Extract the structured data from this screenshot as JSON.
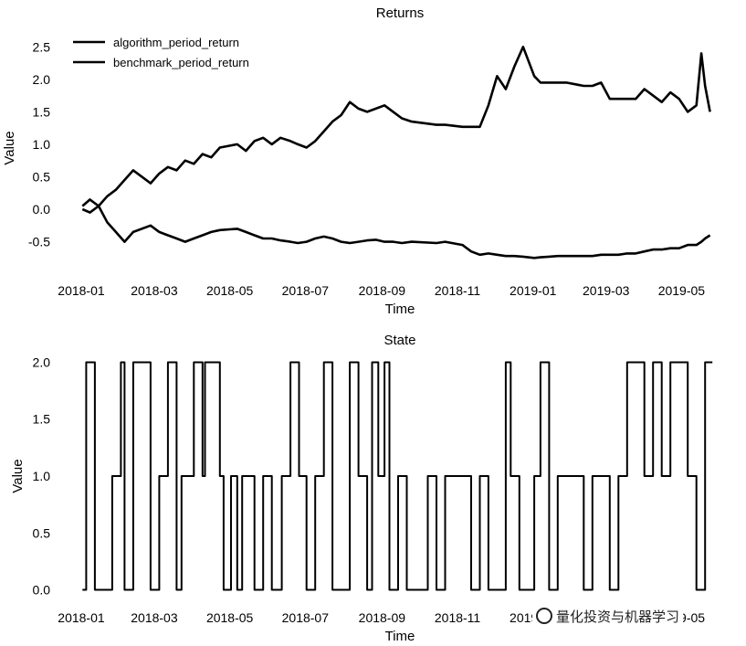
{
  "watermark": "量化投资与机器学习",
  "chart_data": [
    {
      "type": "line",
      "title": "Returns",
      "xlabel": "Time",
      "ylabel": "Value",
      "xlim": [
        "2017-12-18",
        "2019-05-28"
      ],
      "ylim": [
        -0.9,
        2.8
      ],
      "xticks": [
        "2018-01",
        "2018-03",
        "2018-05",
        "2018-07",
        "2018-09",
        "2018-11",
        "2019-01",
        "2019-03",
        "2019-05"
      ],
      "yticks": [
        -0.5,
        0.0,
        0.5,
        1.0,
        1.5,
        2.0,
        2.5
      ],
      "legend": "top-left",
      "grid": false,
      "series": [
        {
          "name": "algorithm_period_return",
          "color": "#000000",
          "x": [
            "2018-01-02",
            "2018-01-08",
            "2018-01-15",
            "2018-01-22",
            "2018-01-29",
            "2018-02-05",
            "2018-02-12",
            "2018-02-26",
            "2018-03-05",
            "2018-03-12",
            "2018-03-19",
            "2018-03-26",
            "2018-04-02",
            "2018-04-09",
            "2018-04-16",
            "2018-04-23",
            "2018-05-07",
            "2018-05-14",
            "2018-05-21",
            "2018-05-28",
            "2018-06-04",
            "2018-06-11",
            "2018-06-19",
            "2018-06-25",
            "2018-07-02",
            "2018-07-09",
            "2018-07-16",
            "2018-07-23",
            "2018-07-30",
            "2018-08-06",
            "2018-08-13",
            "2018-08-20",
            "2018-08-27",
            "2018-09-03",
            "2018-09-10",
            "2018-09-17",
            "2018-09-25",
            "2018-10-15",
            "2018-10-22",
            "2018-11-05",
            "2018-11-12",
            "2018-11-19",
            "2018-11-26",
            "2018-12-03",
            "2018-12-10",
            "2018-12-17",
            "2018-12-24",
            "2019-01-02",
            "2019-01-07",
            "2019-01-14",
            "2019-01-21",
            "2019-01-28",
            "2019-02-11",
            "2019-02-18",
            "2019-02-25",
            "2019-03-04",
            "2019-03-11",
            "2019-03-18",
            "2019-03-25",
            "2019-04-01",
            "2019-04-08",
            "2019-04-15",
            "2019-04-22",
            "2019-04-29",
            "2019-05-06",
            "2019-05-13",
            "2019-05-17",
            "2019-05-20",
            "2019-05-24"
          ],
          "values": [
            0.05,
            0.15,
            0.05,
            0.2,
            0.3,
            0.45,
            0.6,
            0.4,
            0.55,
            0.65,
            0.6,
            0.75,
            0.7,
            0.85,
            0.8,
            0.95,
            1.0,
            0.9,
            1.05,
            1.1,
            1.0,
            1.1,
            1.05,
            1.0,
            0.95,
            1.05,
            1.2,
            1.35,
            1.45,
            1.65,
            1.55,
            1.5,
            1.55,
            1.6,
            1.5,
            1.4,
            1.35,
            1.3,
            1.3,
            1.27,
            1.27,
            1.27,
            1.6,
            2.05,
            1.85,
            2.2,
            2.5,
            2.05,
            1.95,
            1.95,
            1.95,
            1.95,
            1.9,
            1.9,
            1.95,
            1.7,
            1.7,
            1.7,
            1.7,
            1.85,
            1.75,
            1.65,
            1.8,
            1.7,
            1.5,
            1.6,
            2.4,
            1.9,
            1.5
          ]
        },
        {
          "name": "benchmark_period_return",
          "color": "#000000",
          "x": [
            "2018-01-02",
            "2018-01-08",
            "2018-01-15",
            "2018-01-22",
            "2018-01-29",
            "2018-02-05",
            "2018-02-12",
            "2018-02-26",
            "2018-03-05",
            "2018-03-12",
            "2018-03-19",
            "2018-03-26",
            "2018-04-02",
            "2018-04-09",
            "2018-04-16",
            "2018-04-23",
            "2018-05-07",
            "2018-05-14",
            "2018-05-21",
            "2018-05-28",
            "2018-06-04",
            "2018-06-11",
            "2018-06-19",
            "2018-06-25",
            "2018-07-02",
            "2018-07-09",
            "2018-07-16",
            "2018-07-23",
            "2018-07-30",
            "2018-08-06",
            "2018-08-13",
            "2018-08-20",
            "2018-08-27",
            "2018-09-03",
            "2018-09-10",
            "2018-09-17",
            "2018-09-25",
            "2018-10-15",
            "2018-10-22",
            "2018-11-05",
            "2018-11-12",
            "2018-11-19",
            "2018-11-26",
            "2018-12-03",
            "2018-12-10",
            "2018-12-17",
            "2018-12-24",
            "2019-01-02",
            "2019-01-07",
            "2019-01-14",
            "2019-01-21",
            "2019-01-28",
            "2019-02-11",
            "2019-02-18",
            "2019-02-25",
            "2019-03-04",
            "2019-03-11",
            "2019-03-18",
            "2019-03-25",
            "2019-04-01",
            "2019-04-08",
            "2019-04-15",
            "2019-04-22",
            "2019-04-29",
            "2019-05-06",
            "2019-05-13",
            "2019-05-17",
            "2019-05-20",
            "2019-05-24"
          ],
          "values": [
            0.0,
            -0.05,
            0.05,
            -0.2,
            -0.35,
            -0.5,
            -0.35,
            -0.25,
            -0.35,
            -0.4,
            -0.45,
            -0.5,
            -0.45,
            -0.4,
            -0.35,
            -0.32,
            -0.3,
            -0.35,
            -0.4,
            -0.45,
            -0.45,
            -0.48,
            -0.5,
            -0.52,
            -0.5,
            -0.45,
            -0.42,
            -0.45,
            -0.5,
            -0.52,
            -0.5,
            -0.48,
            -0.47,
            -0.5,
            -0.5,
            -0.52,
            -0.5,
            -0.52,
            -0.5,
            -0.55,
            -0.65,
            -0.7,
            -0.68,
            -0.7,
            -0.72,
            -0.72,
            -0.73,
            -0.75,
            -0.74,
            -0.73,
            -0.72,
            -0.72,
            -0.72,
            -0.72,
            -0.7,
            -0.7,
            -0.7,
            -0.68,
            -0.68,
            -0.65,
            -0.62,
            -0.62,
            -0.6,
            -0.6,
            -0.55,
            -0.55,
            -0.5,
            -0.45,
            -0.4
          ]
        }
      ]
    },
    {
      "type": "line",
      "title": "State",
      "xlabel": "Time",
      "ylabel": "Value",
      "xlim": [
        "2017-12-18",
        "2019-05-28"
      ],
      "ylim": [
        -0.1,
        2.1
      ],
      "xticks": [
        "2018-01",
        "2018-03",
        "2018-05",
        "2018-07",
        "2018-09",
        "2018-11",
        "2019-01",
        "2019-03",
        "2019-05"
      ],
      "yticks": [
        0.0,
        0.5,
        1.0,
        1.5,
        2.0
      ],
      "grid": false,
      "series": [
        {
          "color": "#000000",
          "step": true,
          "x": [
            "2018-01-02",
            "2018-01-05",
            "2018-01-12",
            "2018-01-26",
            "2018-02-02",
            "2018-02-05",
            "2018-02-12",
            "2018-02-26",
            "2018-03-05",
            "2018-03-12",
            "2018-03-19",
            "2018-03-23",
            "2018-04-02",
            "2018-04-09",
            "2018-04-11",
            "2018-04-23",
            "2018-04-26",
            "2018-05-02",
            "2018-05-07",
            "2018-05-11",
            "2018-05-16",
            "2018-05-21",
            "2018-05-28",
            "2018-06-04",
            "2018-06-12",
            "2018-06-19",
            "2018-06-26",
            "2018-07-02",
            "2018-07-09",
            "2018-07-16",
            "2018-07-23",
            "2018-08-06",
            "2018-08-13",
            "2018-08-20",
            "2018-08-24",
            "2018-08-29",
            "2018-09-03",
            "2018-09-07",
            "2018-09-14",
            "2018-09-21",
            "2018-10-08",
            "2018-10-15",
            "2018-10-22",
            "2018-10-26",
            "2018-11-12",
            "2018-11-19",
            "2018-11-26",
            "2018-12-10",
            "2018-12-14",
            "2018-12-21",
            "2019-01-02",
            "2019-01-07",
            "2019-01-14",
            "2019-01-21",
            "2019-02-11",
            "2019-02-18",
            "2019-02-25",
            "2019-03-04",
            "2019-03-11",
            "2019-03-18",
            "2019-04-01",
            "2019-04-08",
            "2019-04-15",
            "2019-04-22",
            "2019-05-06",
            "2019-05-13",
            "2019-05-20"
          ],
          "values": [
            0,
            2,
            0,
            1,
            2,
            0,
            2,
            0,
            1,
            2,
            0,
            1,
            2,
            1,
            2,
            1,
            0,
            1,
            0,
            1,
            1,
            0,
            1,
            0,
            1,
            2,
            1,
            0,
            1,
            2,
            0,
            2,
            1,
            0,
            2,
            1,
            2,
            0,
            1,
            0,
            1,
            0,
            1,
            1,
            0,
            1,
            0,
            2,
            1,
            0,
            1,
            2,
            0,
            1,
            0,
            1,
            1,
            0,
            1,
            2,
            1,
            2,
            1,
            2,
            1,
            0,
            2
          ]
        }
      ]
    }
  ]
}
